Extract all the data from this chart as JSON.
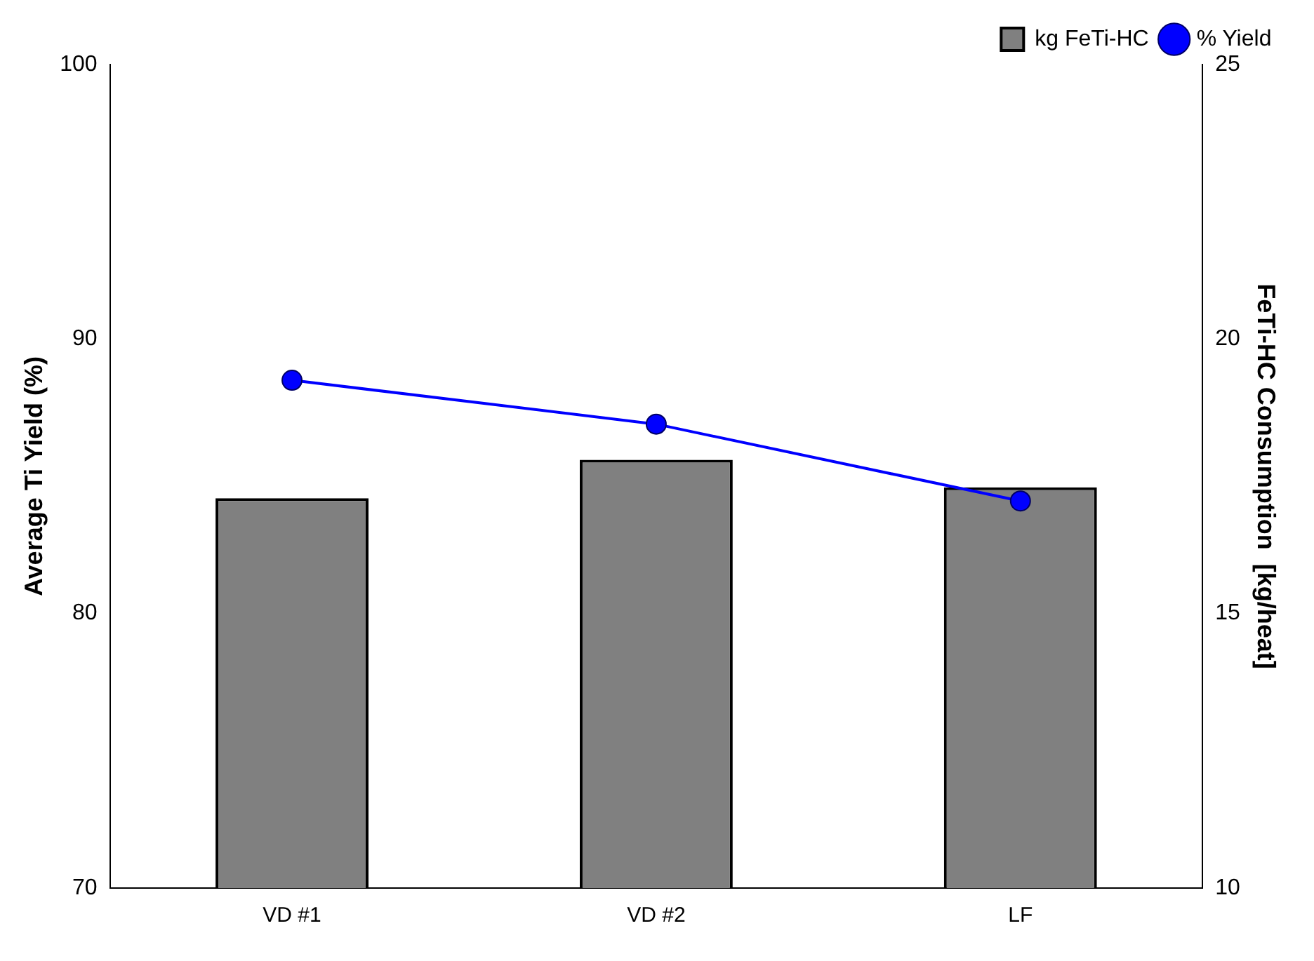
{
  "chart_data": {
    "type": "bar",
    "categories": [
      "VD #1",
      "VD #2",
      "LF"
    ],
    "series": [
      {
        "name": "kg FeTi-HC",
        "axis": "y2",
        "color": "#808080",
        "values": [
          17.1,
          17.8,
          17.3
        ]
      },
      {
        "name": "% Yield",
        "type": "line",
        "axis": "y",
        "color": "#0000ff",
        "values": [
          88.5,
          86.9,
          84.1
        ]
      }
    ],
    "ylabel": "Average Ti Yield (%)",
    "y2label": "FeTi-HC Consumption  [kg/heat]",
    "ylim": [
      70,
      100
    ],
    "yticks": [
      70,
      80,
      90,
      100
    ],
    "y2lim": [
      10,
      25
    ],
    "y2ticks": [
      10,
      15,
      20,
      25
    ],
    "grid": false,
    "legend": "top right",
    "marker": "circle"
  }
}
